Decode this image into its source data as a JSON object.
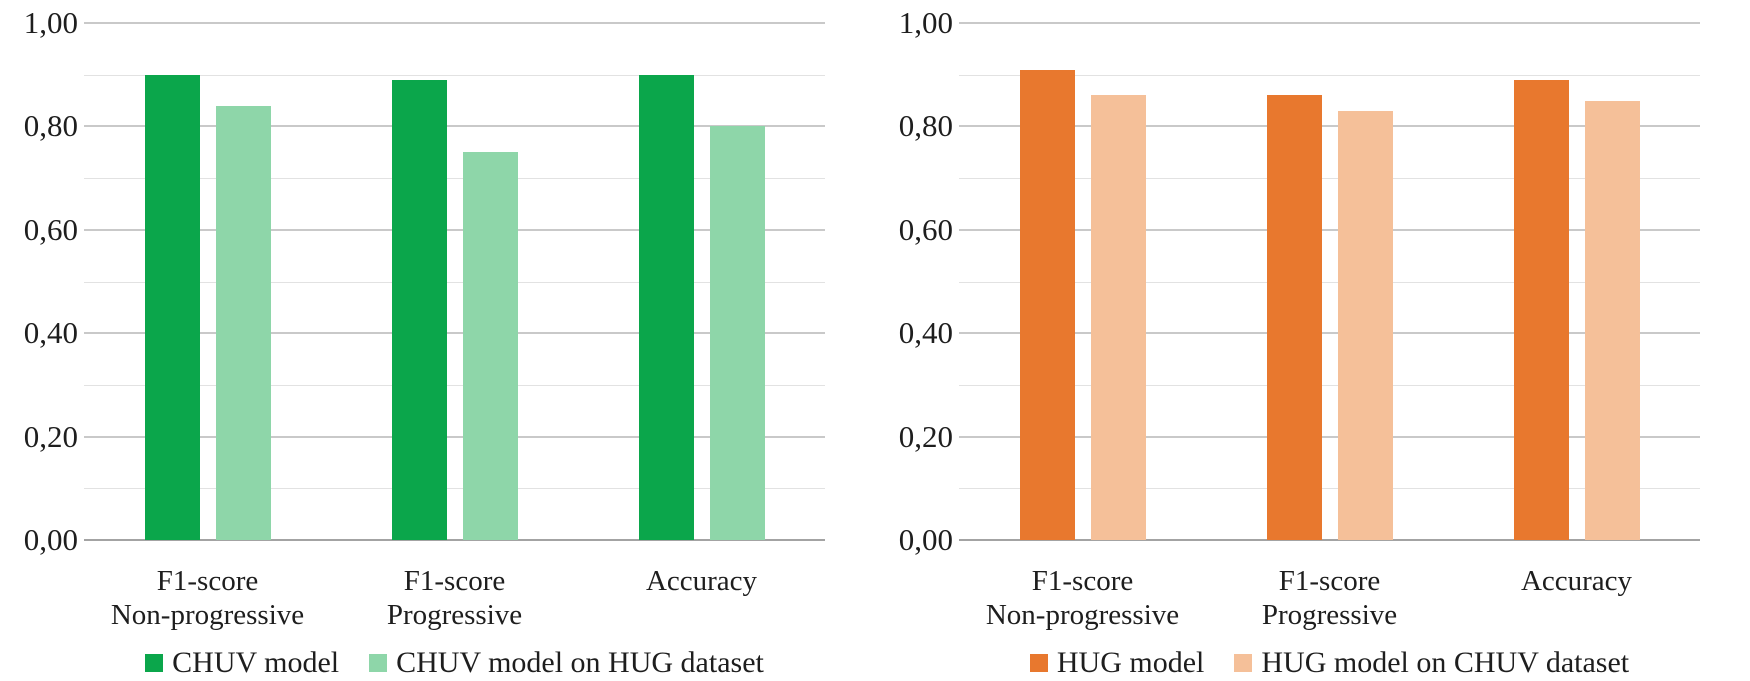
{
  "figure": {
    "background": "#ffffff",
    "text_color": "#1e1e1e",
    "gridline_major_color": "#c9c9c9",
    "gridline_minor_color": "#e2e2e2",
    "axis_line_color": "#a3a3a3"
  },
  "chart_data": [
    {
      "type": "bar",
      "title": "",
      "categories": [
        [
          "F1-score",
          "Non-progressive"
        ],
        [
          "F1-score",
          "Progressive"
        ],
        [
          "Accuracy"
        ]
      ],
      "series": [
        {
          "name": "CHUV model",
          "color": "#0ba64b",
          "values": [
            0.9,
            0.89,
            0.9
          ]
        },
        {
          "name": "CHUV model on HUG dataset",
          "color": "#8ed6a9",
          "values": [
            0.84,
            0.75,
            0.8
          ]
        }
      ],
      "xlabel": "",
      "ylabel": "",
      "ylim": [
        0,
        1
      ],
      "ytick_values": [
        0,
        0.2,
        0.4,
        0.6,
        0.8,
        1
      ],
      "ytick_labels": [
        "0,00",
        "0,20",
        "0,40",
        "0,60",
        "0,80",
        "1,00"
      ],
      "minor_grid_step": 0.1,
      "grid": true,
      "legend_position": "bottom"
    },
    {
      "type": "bar",
      "title": "",
      "categories": [
        [
          "F1-score",
          "Non-progressive"
        ],
        [
          "F1-score",
          "Progressive"
        ],
        [
          "Accuracy"
        ]
      ],
      "series": [
        {
          "name": "HUG model",
          "color": "#e8782e",
          "values": [
            0.91,
            0.86,
            0.89
          ]
        },
        {
          "name": "HUG model on CHUV dataset",
          "color": "#f5c099",
          "values": [
            0.86,
            0.83,
            0.85
          ]
        }
      ],
      "xlabel": "",
      "ylabel": "",
      "ylim": [
        0,
        1
      ],
      "ytick_values": [
        0,
        0.2,
        0.4,
        0.6,
        0.8,
        1
      ],
      "ytick_labels": [
        "0,00",
        "0,20",
        "0,40",
        "0,60",
        "0,80",
        "1,00"
      ],
      "minor_grid_step": 0.1,
      "grid": true,
      "legend_position": "bottom"
    }
  ]
}
